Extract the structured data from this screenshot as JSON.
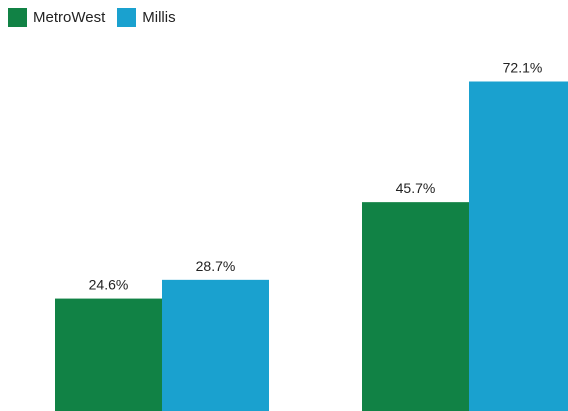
{
  "chart_data": {
    "type": "bar",
    "categories": [
      "",
      ""
    ],
    "series": [
      {
        "name": "MetroWest",
        "color": "#118245",
        "values": [
          24.6,
          45.7
        ],
        "labels": [
          "24.6%",
          "45.7%"
        ]
      },
      {
        "name": "Millis",
        "color": "#1aa1cf",
        "values": [
          28.7,
          72.1
        ],
        "labels": [
          "28.7%",
          "72.1%"
        ]
      }
    ],
    "title": "",
    "xlabel": "",
    "ylabel": "",
    "ylim": [
      0,
      80
    ],
    "grid": false,
    "legend_position": "top-left"
  }
}
